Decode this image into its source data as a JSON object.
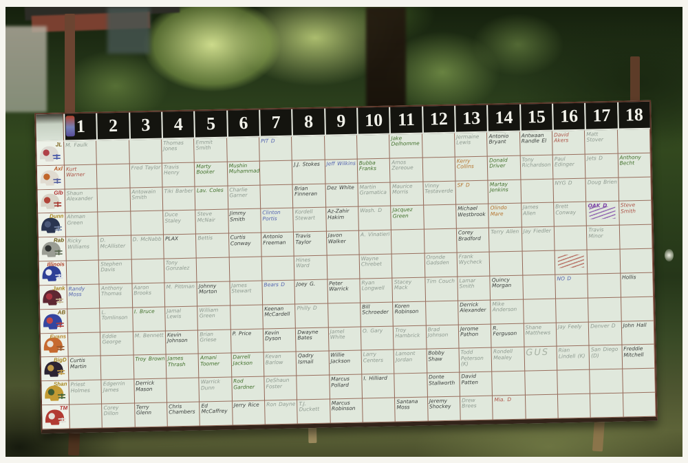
{
  "board": {
    "column_headers": [
      "1",
      "2",
      "3",
      "4",
      "5",
      "6",
      "7",
      "8",
      "9",
      "10",
      "11",
      "12",
      "13",
      "14",
      "15",
      "16",
      "17",
      "18"
    ],
    "helmet_icon": "football-helmet-icon",
    "rows": [
      {
        "label": "JL",
        "label_color": "#7a6018",
        "helmet": {
          "shell": "#dcd9d2",
          "mask": "#4858a8",
          "logo": "#b04048"
        },
        "cells": [
          [
            "M. Faulk",
            "p"
          ],
          "",
          "",
          [
            "Thomas Jones",
            "p"
          ],
          [
            "Emmit Smith",
            "p"
          ],
          "",
          [
            "PIT D",
            "b"
          ],
          "",
          "",
          "",
          [
            "Jake Delhomme",
            "g"
          ],
          "",
          [
            "Jermaine Lewis",
            "p"
          ],
          [
            "Antonio Bryant",
            "k"
          ],
          [
            "Antwaan Randle El",
            "k"
          ],
          [
            "David Akers",
            "r"
          ],
          [
            "Matt Stover",
            "p"
          ],
          ""
        ]
      },
      {
        "label": "Axl",
        "label_color": "#b5541f",
        "helmet": {
          "shell": "#e0dbd0",
          "mask": "#5560a0",
          "logo": "#c0662a"
        },
        "cells": [
          [
            "Kurt Warner",
            "r"
          ],
          "",
          [
            "Fred Taylor",
            "p"
          ],
          [
            "Travis Henry",
            "p"
          ],
          [
            "Marty Booker",
            "g"
          ],
          [
            "Mushin Muhammad",
            "g"
          ],
          "",
          [
            "J.J. Stokes",
            "k"
          ],
          [
            "Jeff Wilkins",
            "b"
          ],
          [
            "Bubba Franks",
            "g"
          ],
          [
            "Amos Zereoue",
            "p"
          ],
          "",
          [
            "Kerry Collins",
            "o"
          ],
          [
            "Donald Driver",
            "g"
          ],
          [
            "Tony Richardson",
            "p"
          ],
          [
            "Paul Edinger",
            "p"
          ],
          [
            "Jets D",
            "p"
          ],
          [
            "Anthony Becht",
            "g"
          ]
        ]
      },
      {
        "label": "Glb",
        "label_color": "#b03030",
        "helmet": {
          "shell": "#d8d4c8",
          "mask": "#a83c34",
          "logo": "#b04438"
        },
        "cells": [
          [
            "Shaun Alexander",
            "p"
          ],
          "",
          [
            "Antowain Smith",
            "p"
          ],
          [
            "Tiki Barber",
            "p"
          ],
          [
            "Lav. Coles",
            "g"
          ],
          [
            "Charlie Garner",
            "p"
          ],
          "",
          [
            "Brian Finneran",
            "k"
          ],
          [
            "Dez White",
            "k"
          ],
          [
            "Martin Gramatica",
            "p"
          ],
          [
            "Maurice Morris",
            "p"
          ],
          [
            "Vinny Testaverde",
            "p"
          ],
          [
            "SF D",
            "o"
          ],
          [
            "Martay Jenkins",
            "g"
          ],
          "",
          [
            "NYG D",
            "p"
          ],
          [
            "Doug Brien",
            "p"
          ],
          ""
        ]
      },
      {
        "label": "Dunn",
        "label_color": "#a8861f",
        "helmet": {
          "shell": "#2a3550",
          "mask": "#7888a8",
          "logo": "#4a5878"
        },
        "cells": [
          [
            "Ahman Green",
            "p"
          ],
          "",
          "",
          [
            "Duce Staley",
            "p"
          ],
          [
            "Steve McNair",
            "p"
          ],
          [
            "Jimmy Smith",
            "k"
          ],
          [
            "Clinton Portis",
            "b"
          ],
          [
            "Kordell Stewart",
            "p"
          ],
          [
            "Az-Zahir Hakim",
            "k"
          ],
          [
            "Wash. D",
            "p"
          ],
          [
            "Jacquez Green",
            "g"
          ],
          "",
          [
            "Michael Westbrook",
            "k"
          ],
          [
            "Olindo Mare",
            "o"
          ],
          [
            "James Allen",
            "p"
          ],
          [
            "Brett Conway",
            "p"
          ],
          [
            "OAK D",
            "u",
            "x"
          ],
          [
            "Steve Smith",
            "r"
          ]
        ]
      },
      {
        "label": "Rab",
        "label_color": "#6b5a10",
        "helmet": {
          "shell": "#9a9d94",
          "mask": "#5a6850",
          "logo": "#2e3230"
        },
        "cells": [
          [
            "Ricky Williams",
            "p"
          ],
          [
            "D. McAllister",
            "p"
          ],
          [
            "D. McNabb",
            "p"
          ],
          [
            "PLAX",
            "k"
          ],
          [
            "Bettis",
            "p"
          ],
          [
            "Curtis Conway",
            "k"
          ],
          [
            "Antonio Freeman",
            "k"
          ],
          [
            "Travis Taylor",
            "k"
          ],
          [
            "Javon Walker",
            "k"
          ],
          [
            "A. Vinatieri",
            "p"
          ],
          "",
          "",
          [
            "Corey Bradford",
            "k"
          ],
          [
            "Terry Allen",
            "p"
          ],
          [
            "Jay Fiedler",
            "p"
          ],
          "",
          [
            "Travis Minor",
            "p"
          ],
          ""
        ]
      },
      {
        "label": "Illinois",
        "label_color": "#b04028",
        "helmet": {
          "shell": "#2e3f96",
          "mask": "#d8dce8",
          "logo": "#e8eaf0"
        },
        "cells": [
          "",
          [
            "Stephen Davis",
            "p"
          ],
          "",
          [
            "Tony Gonzalez",
            "p"
          ],
          "",
          "",
          "",
          [
            "Hines Ward",
            "p"
          ],
          "",
          [
            "Wayne Chrebet",
            "p"
          ],
          "",
          [
            "Oronde Gadsden",
            "p"
          ],
          [
            "Frank Wycheck",
            "p"
          ],
          "",
          "",
          [
            "",
            "r",
            "x"
          ],
          "",
          ""
        ]
      },
      {
        "label": "Jank",
        "label_color": "#a8861f",
        "helmet": {
          "shell": "#5e2832",
          "mask": "#c8b894",
          "logo": "#a83440"
        },
        "cells": [
          [
            "Randy Moss",
            "b"
          ],
          [
            "Anthony Thomas",
            "p"
          ],
          [
            "Aaron Brooks",
            "p"
          ],
          [
            "M. Pittman",
            "p"
          ],
          [
            "Johnny Morton",
            "k"
          ],
          [
            "James Stewart",
            "p"
          ],
          [
            "Bears D",
            "b"
          ],
          [
            "Joey G.",
            "k"
          ],
          [
            "Peter Warrick",
            "k"
          ],
          [
            "Ryan Longwell",
            "p"
          ],
          [
            "Stacey Mack",
            "p"
          ],
          [
            "Tim Couch",
            "p"
          ],
          [
            "Lamar Smith",
            "p"
          ],
          [
            "Quincy Morgan",
            "k"
          ],
          "",
          [
            "NO D",
            "b"
          ],
          "",
          [
            "Hollis",
            "k"
          ]
        ]
      },
      {
        "label": "AB",
        "label_color": "#7a6018",
        "helmet": {
          "shell": "#3346a0",
          "mask": "#b04040",
          "logo": "#c04848"
        },
        "cells": [
          "",
          [
            "L. Tomlinson",
            "p"
          ],
          [
            "I. Bruce",
            "g"
          ],
          [
            "Jamal Lewis",
            "p"
          ],
          [
            "William Green",
            "p"
          ],
          "",
          [
            "Keenan McCardell",
            "k"
          ],
          [
            "Philly D",
            "p"
          ],
          "",
          [
            "Bill Schroeder",
            "k"
          ],
          [
            "Koren Robinson",
            "k"
          ],
          "",
          [
            "Derrick Alexander",
            "k"
          ],
          [
            "Mike Anderson",
            "p"
          ],
          "",
          "",
          "",
          ""
        ]
      },
      {
        "label": "Evans",
        "label_color": "#b5862a",
        "helmet": {
          "shell": "#c66a30",
          "mask": "#98582e",
          "logo": "#e8e4da"
        },
        "cells": [
          "",
          [
            "Eddie George",
            "p"
          ],
          [
            "M. Bennett",
            "p"
          ],
          [
            "Kevin Johnson",
            "k"
          ],
          [
            "Brian Griese",
            "p"
          ],
          [
            "P. Price",
            "k"
          ],
          [
            "Kevin Dyson",
            "k"
          ],
          [
            "Dwayne Bates",
            "k"
          ],
          [
            "Jamel White",
            "p"
          ],
          [
            "O. Gary",
            "p"
          ],
          [
            "Troy Hambrick",
            "p"
          ],
          [
            "Brad Johnson",
            "p"
          ],
          [
            "Jerome Pathon",
            "k"
          ],
          [
            "R. Ferguson",
            "k"
          ],
          [
            "Shane Matthews",
            "p"
          ],
          [
            "Jay Feely",
            "p"
          ],
          [
            "Denver D",
            "p"
          ],
          [
            "John Hall",
            "k"
          ]
        ]
      },
      {
        "label": "BigD",
        "label_color": "#a8861f",
        "helmet": {
          "shell": "#2c2433",
          "mask": "#c09a48",
          "logo": "#c09a48"
        },
        "cells": [
          [
            "Curtis Martin",
            "k"
          ],
          "",
          [
            "Troy Brown",
            "g"
          ],
          [
            "James Thrash",
            "g"
          ],
          [
            "Amani Toomer",
            "g"
          ],
          [
            "Darrell Jackson",
            "g"
          ],
          [
            "Kevan Barlow",
            "p"
          ],
          [
            "Qadry Ismail",
            "k"
          ],
          [
            "Willie Jackson",
            "k"
          ],
          [
            "Larry Centers",
            "p"
          ],
          [
            "Lamont Jordan",
            "p"
          ],
          [
            "Bobby Shaw",
            "k"
          ],
          [
            "Todd Peterson (K)",
            "p"
          ],
          [
            "Rondell Mealey",
            "p"
          ],
          [
            "GUS",
            "p",
            "B"
          ],
          [
            "Rian Lindell (K)",
            "p"
          ],
          [
            "San Diego (D)",
            "p"
          ],
          [
            "Freddie Mitchell",
            "k"
          ]
        ]
      },
      {
        "label": "Shan",
        "label_color": "#a8861f",
        "helmet": {
          "shell": "#c39a33",
          "mask": "#46663a",
          "logo": "#3e5c34"
        },
        "cells": [
          [
            "Priest Holmes",
            "p"
          ],
          [
            "Edgerrin James",
            "p"
          ],
          [
            "Derrick Mason",
            "k"
          ],
          "",
          [
            "Warrick Dunn",
            "p"
          ],
          [
            "Rod Gardner",
            "g"
          ],
          [
            "DeShaun Foster",
            "p"
          ],
          "",
          [
            "Marcus Pollard",
            "k"
          ],
          [
            "I. Hilliard",
            "k"
          ],
          "",
          [
            "Donte Stallworth",
            "k"
          ],
          [
            "David Patten",
            "k"
          ],
          "",
          "",
          "",
          "",
          ""
        ]
      },
      {
        "label": "TM",
        "label_color": "#b03030",
        "helmet": {
          "shell": "#b23b33",
          "mask": "#e0ded6",
          "logo": "#e4e2da"
        },
        "cells": [
          "",
          [
            "Corey Dillon",
            "p"
          ],
          [
            "Terry Glenn",
            "k"
          ],
          [
            "Chris Chambers",
            "k"
          ],
          [
            "Ed McCaffrey",
            "k"
          ],
          [
            "Jerry Rice",
            "k"
          ],
          [
            "Ron Dayne",
            "p"
          ],
          [
            "T.J. Duckett",
            "p"
          ],
          [
            "Marcus Robinson",
            "k"
          ],
          "",
          [
            "Santana Moss",
            "k"
          ],
          [
            "Jeremy Shockey",
            "k"
          ],
          [
            "Drew Brees",
            "p"
          ],
          [
            "Mia. D",
            "r"
          ],
          "",
          "",
          "",
          ""
        ]
      }
    ]
  }
}
